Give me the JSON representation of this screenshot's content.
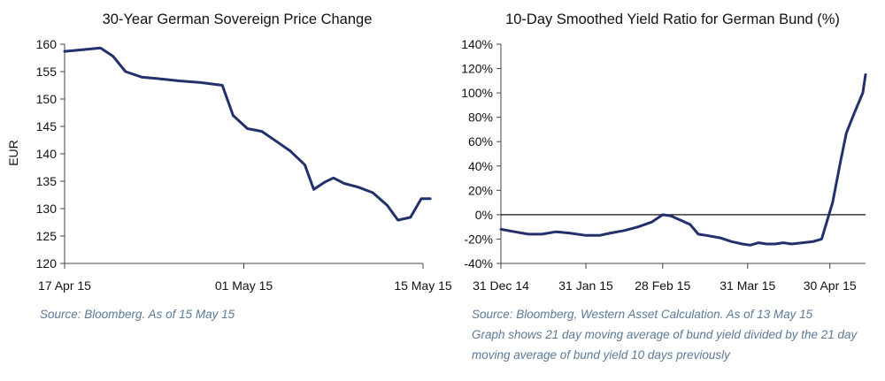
{
  "chart_data": [
    {
      "type": "line",
      "title": "30-Year German Sovereign Price Change",
      "xlabel": "",
      "ylabel": "EUR",
      "ylim": [
        120,
        160
      ],
      "yticks": [
        120,
        125,
        130,
        135,
        140,
        145,
        150,
        155,
        160
      ],
      "yticklabels": [
        "120",
        "125",
        "130",
        "135",
        "140",
        "145",
        "150",
        "155",
        "160"
      ],
      "xlim": [
        0,
        20
      ],
      "xticks": [
        0,
        10,
        20
      ],
      "xticklabels": [
        "17 Apr 15",
        "01 May 15",
        "15 May 15"
      ],
      "grid": false,
      "series": [
        {
          "name": "30-Year German Sovereign Price",
          "color": "#24306b",
          "x": [
            0,
            1,
            2,
            2.7,
            3.4,
            4.3,
            5.3,
            6.4,
            7.6,
            8.8,
            9.4,
            10.2,
            11.0,
            11.8,
            12.6,
            13.4,
            13.9,
            14.5,
            15.0,
            15.6,
            16.4,
            17.2,
            18.0,
            18.6,
            19.3,
            19.9,
            20.4
          ],
          "y": [
            158.7,
            159.0,
            159.3,
            157.8,
            155.0,
            154.0,
            153.7,
            153.3,
            153.0,
            152.5,
            147.0,
            144.6,
            144.1,
            142.3,
            140.5,
            138.0,
            133.5,
            134.8,
            135.6,
            134.6,
            133.9,
            132.9,
            130.6,
            127.9,
            128.4,
            131.8,
            131.8
          ]
        }
      ],
      "source": "Source: Bloomberg. As of 15 May 15"
    },
    {
      "type": "line",
      "title": "10-Day Smoothed Yield Ratio for German Bund (%)",
      "xlabel": "",
      "ylabel": "",
      "ylim": [
        -40,
        140
      ],
      "yticks": [
        -40,
        -20,
        0,
        20,
        40,
        60,
        80,
        100,
        120,
        140
      ],
      "yticklabels": [
        "-40%",
        "-20%",
        "0%",
        "20%",
        "40%",
        "60%",
        "80%",
        "100%",
        "120%",
        "140%"
      ],
      "xlim": [
        0,
        133
      ],
      "xticks": [
        0,
        31,
        59,
        90,
        120
      ],
      "xticklabels": [
        "31 Dec 14",
        "31 Jan 15",
        "28 Feb 15",
        "31 Mar 15",
        "30 Apr 15"
      ],
      "zero_line": true,
      "grid": false,
      "series": [
        {
          "name": "Yield ratio",
          "color": "#24306b",
          "x": [
            0,
            5,
            10,
            15,
            20,
            25,
            31,
            36,
            40,
            45,
            50,
            55,
            59,
            62,
            65,
            69,
            72,
            75,
            80,
            84,
            88,
            91,
            94,
            97,
            100,
            103,
            106,
            110,
            114,
            117,
            119,
            121,
            124,
            126,
            129,
            132,
            133
          ],
          "y": [
            -12,
            -14,
            -16,
            -16,
            -14,
            -15,
            -17,
            -17,
            -15,
            -13,
            -10,
            -6,
            0,
            -1,
            -4,
            -8,
            -16,
            -17,
            -19,
            -22,
            -24,
            -25,
            -23,
            -24,
            -24,
            -23,
            -24,
            -23,
            -22,
            -20,
            -5,
            10,
            45,
            67,
            84,
            100,
            115
          ]
        }
      ],
      "notes": [
        "Source: Bloomberg, Western Asset Calculation. As of 13 May 15",
        "Graph shows 21 day moving average of bund yield divided by the 21 day",
        "moving average of bund yield 10 days previously"
      ]
    }
  ]
}
